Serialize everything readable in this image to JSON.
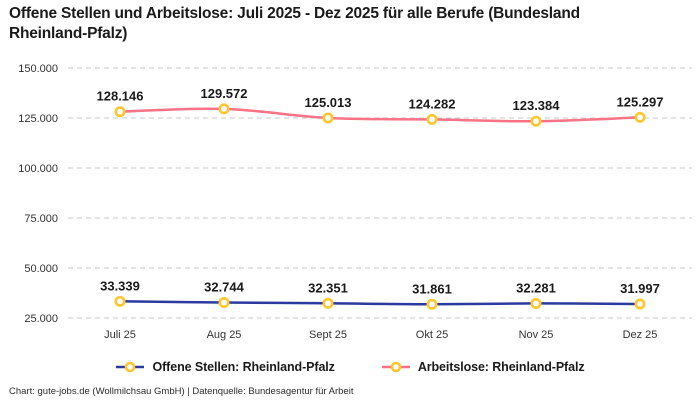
{
  "title": "Offene Stellen und Arbeitslose: Juli 2025 - Dez 2025 für alle Berufe (Bundesland Rheinland-Pfalz)",
  "footer": "Chart: gute-jobs.de (Wollmilchsau GmbH) | Datenquelle: Bundesagentur für Arbeit",
  "colors": {
    "background": "#ffffff",
    "title_text": "#1a1a1a",
    "axis_text": "#333333",
    "gridline": "#c9c9c9",
    "marker_fill": "#ffffff",
    "marker_stroke": "#ffc62e",
    "series_offene_stellen": "#2b3a9e",
    "series_arbeitslose": "#f97285"
  },
  "chart_data": {
    "type": "line",
    "title": "Offene Stellen und Arbeitslose: Juli 2025 - Dez 2025 für alle Berufe (Bundesland Rheinland-Pfalz)",
    "categories": [
      "Juli 25",
      "Aug 25",
      "Sept 25",
      "Okt 25",
      "Nov 25",
      "Dez 25"
    ],
    "series": [
      {
        "name": "Offene Stellen: Rheinland-Pfalz",
        "color": "#2b3a9e",
        "values": [
          33339,
          32744,
          32351,
          31861,
          32281,
          31997
        ],
        "value_labels": [
          "33.339",
          "32.744",
          "32.351",
          "31.861",
          "32.281",
          "31.997"
        ]
      },
      {
        "name": "Arbeitslose: Rheinland-Pfalz",
        "color": "#f97285",
        "values": [
          128146,
          129572,
          125013,
          124282,
          123384,
          125297
        ],
        "value_labels": [
          "128.146",
          "129.572",
          "125.013",
          "124.282",
          "123.384",
          "125.297"
        ]
      }
    ],
    "ylim": [
      25000,
      150000
    ],
    "yticks": [
      150000,
      125000,
      100000,
      75000,
      50000,
      25000
    ],
    "ytick_labels": [
      "150.000",
      "125.000",
      "100.000",
      "75.000",
      "50.000",
      "25.000"
    ],
    "grid": "horizontal dashed",
    "legend_position": "bottom",
    "markers": "open circles, yellow stroke, white fill",
    "data_labels": "shown above each point, German thousands format"
  }
}
